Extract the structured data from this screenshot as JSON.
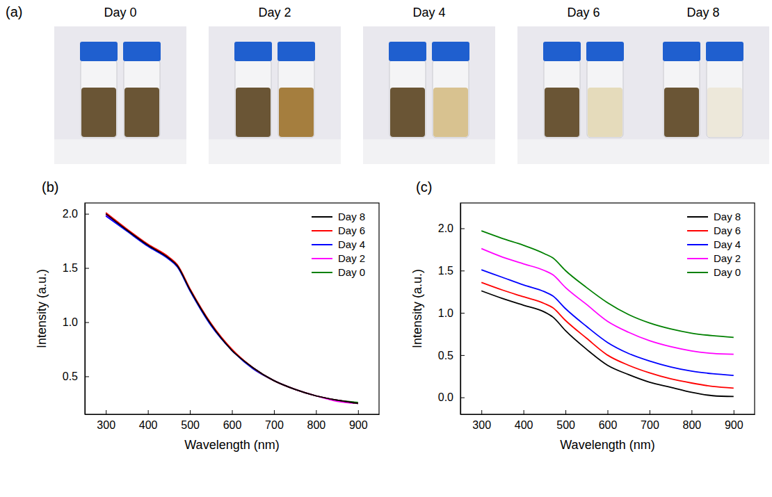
{
  "photos": {
    "panel": "(a)",
    "samples": [
      {
        "title": "Day 0",
        "colors": [
          "#6a5535",
          "#6a5535"
        ]
      },
      {
        "title": "Day 2",
        "colors": [
          "#6a5535",
          "#a57e3e"
        ]
      },
      {
        "title": "Day 4",
        "colors": [
          "#6a5535",
          "#d8c290"
        ]
      },
      {
        "title": "Day 6",
        "colors": [
          "#6a5535",
          "#e5dbbb"
        ]
      },
      {
        "title": "Day 8",
        "colors": [
          "#6a5535",
          "#ede8da"
        ]
      }
    ]
  },
  "chart_data": [
    {
      "type": "line",
      "panel": "(b)",
      "x_label": "Wavelength (nm)",
      "y_label": "Intensity (a.u.)",
      "x": [
        300,
        350,
        400,
        450,
        470,
        500,
        550,
        600,
        650,
        700,
        750,
        800,
        850,
        900
      ],
      "xlim": [
        250,
        950
      ],
      "xticks": [
        300,
        400,
        500,
        600,
        700,
        800,
        900
      ],
      "ylim": [
        0.15,
        2.1
      ],
      "yticks": [
        0.5,
        {
          "value": 1.0,
          "label": "1.0"
        },
        1.5,
        {
          "value": 2.0,
          "label": "2.0"
        }
      ],
      "legend": "upper right",
      "series": [
        {
          "name": "Day 8",
          "color": "#000000",
          "values": [
            2.0,
            1.85,
            1.71,
            1.59,
            1.52,
            1.3,
            0.98,
            0.74,
            0.58,
            0.46,
            0.38,
            0.32,
            0.28,
            0.25
          ]
        },
        {
          "name": "Day 6",
          "color": "#ff0000",
          "values": [
            2.01,
            1.86,
            1.72,
            1.6,
            1.53,
            1.31,
            0.99,
            0.75,
            0.58,
            0.46,
            0.38,
            0.32,
            0.28,
            0.25
          ]
        },
        {
          "name": "Day 4",
          "color": "#0000ff",
          "values": [
            1.98,
            1.84,
            1.7,
            1.58,
            1.51,
            1.29,
            0.97,
            0.74,
            0.57,
            0.46,
            0.38,
            0.32,
            0.28,
            0.25
          ]
        },
        {
          "name": "Day 2",
          "color": "#ff00ff",
          "values": [
            1.99,
            1.85,
            1.71,
            1.59,
            1.52,
            1.3,
            0.98,
            0.74,
            0.58,
            0.46,
            0.38,
            0.32,
            0.27,
            0.25
          ]
        },
        {
          "name": "Day 0",
          "color": "#008000",
          "values": [
            1.99,
            1.85,
            1.71,
            1.59,
            1.52,
            1.3,
            0.98,
            0.74,
            0.58,
            0.46,
            0.38,
            0.32,
            0.28,
            0.26
          ]
        }
      ]
    },
    {
      "type": "line",
      "panel": "(c)",
      "x_label": "Wavelength (nm)",
      "y_label": "Intensity (a.u.)",
      "x": [
        300,
        350,
        400,
        450,
        470,
        500,
        550,
        600,
        650,
        700,
        750,
        800,
        850,
        900
      ],
      "xlim": [
        250,
        950
      ],
      "xticks": [
        300,
        400,
        500,
        600,
        700,
        800,
        900
      ],
      "ylim": [
        -0.2,
        2.3
      ],
      "yticks": [
        {
          "value": 0.0,
          "label": "0.0"
        },
        0.5,
        {
          "value": 1.0,
          "label": "1.0"
        },
        1.5,
        {
          "value": 2.0,
          "label": "2.0"
        }
      ],
      "legend": "upper right",
      "series": [
        {
          "name": "Day 8",
          "color": "#000000",
          "values": [
            1.26,
            1.17,
            1.09,
            1.01,
            0.95,
            0.79,
            0.57,
            0.38,
            0.27,
            0.18,
            0.12,
            0.06,
            0.02,
            0.01
          ]
        },
        {
          "name": "Day 6",
          "color": "#ff0000",
          "values": [
            1.36,
            1.27,
            1.19,
            1.11,
            1.06,
            0.91,
            0.7,
            0.5,
            0.38,
            0.29,
            0.22,
            0.17,
            0.13,
            0.11
          ]
        },
        {
          "name": "Day 4",
          "color": "#0000ff",
          "values": [
            1.51,
            1.42,
            1.33,
            1.25,
            1.2,
            1.05,
            0.84,
            0.65,
            0.52,
            0.43,
            0.36,
            0.31,
            0.28,
            0.26
          ]
        },
        {
          "name": "Day 2",
          "color": "#ff00ff",
          "values": [
            1.76,
            1.66,
            1.58,
            1.5,
            1.45,
            1.3,
            1.1,
            0.9,
            0.77,
            0.67,
            0.6,
            0.55,
            0.52,
            0.51
          ]
        },
        {
          "name": "Day 0",
          "color": "#008000",
          "values": [
            1.97,
            1.88,
            1.8,
            1.7,
            1.65,
            1.5,
            1.3,
            1.12,
            0.98,
            0.88,
            0.81,
            0.76,
            0.73,
            0.71
          ]
        }
      ]
    }
  ]
}
